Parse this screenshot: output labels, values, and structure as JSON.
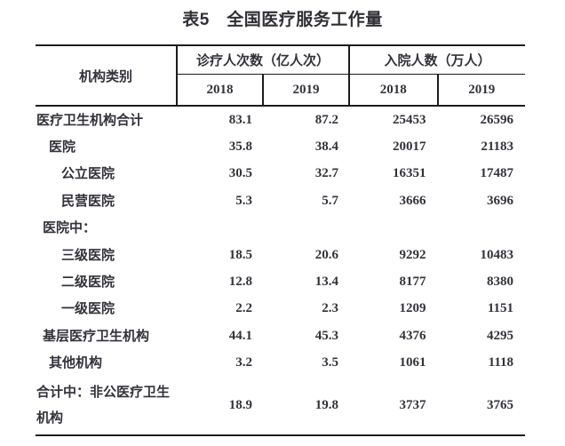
{
  "title": "表5　全国医疗服务工作量",
  "table": {
    "category_header": "机构类别",
    "groups": [
      {
        "label": "诊疗人次数（亿人次）",
        "years": [
          "2018",
          "2019"
        ]
      },
      {
        "label": "入院人数（万人）",
        "years": [
          "2018",
          "2019"
        ]
      }
    ],
    "rows": [
      {
        "label": "医疗卫生机构合计",
        "values": [
          "83.1",
          "87.2",
          "25453",
          "26596"
        ]
      },
      {
        "label": "医院",
        "values": [
          "35.8",
          "38.4",
          "20017",
          "21183"
        ]
      },
      {
        "label": "公立医院",
        "values": [
          "30.5",
          "32.7",
          "16351",
          "17487"
        ]
      },
      {
        "label": "民营医院",
        "values": [
          "5.3",
          "5.7",
          "3666",
          "3696"
        ]
      },
      {
        "label": "医院中：",
        "values": [
          "",
          "",
          "",
          ""
        ]
      },
      {
        "label": "三级医院",
        "values": [
          "18.5",
          "20.6",
          "9292",
          "10483"
        ]
      },
      {
        "label": "二级医院",
        "values": [
          "12.8",
          "13.4",
          "8177",
          "8380"
        ]
      },
      {
        "label": "一级医院",
        "values": [
          "2.2",
          "2.3",
          "1209",
          "1151"
        ]
      },
      {
        "label": "基层医疗卫生机构",
        "values": [
          "44.1",
          "45.3",
          "4376",
          "4295"
        ]
      },
      {
        "label": "其他机构",
        "values": [
          "3.2",
          "3.5",
          "1061",
          "1118"
        ]
      },
      {
        "label": "合计中：非公医疗卫生机构",
        "values": [
          "18.9",
          "19.8",
          "3737",
          "3765"
        ]
      }
    ]
  },
  "colors": {
    "text": "#32323a",
    "line": "#1c1c1c",
    "background": "#ffffff"
  }
}
